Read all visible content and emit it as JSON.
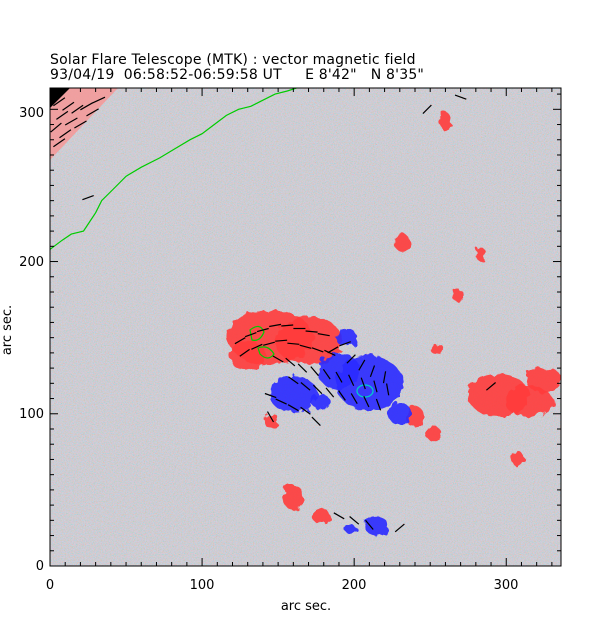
{
  "header": {
    "title": "Solar Flare Telescope (MTK) : vector magnetic field",
    "subtitle": "93/04/19  06:58:52-06:59:58 UT     E 8'42\"   N 8'35\""
  },
  "plot": {
    "xlabel": "arc sec.",
    "ylabel": "arc sec.",
    "xlim": [
      0,
      336
    ],
    "ylim": [
      0,
      314
    ],
    "x_ticks": [
      "0",
      "100",
      "200",
      "300"
    ],
    "y_ticks": [
      "0",
      "100",
      "200",
      "300"
    ],
    "colors": {
      "positive_polarity": "#ff3b3b",
      "negative_polarity": "#2a2aff",
      "contour": "#00cc00",
      "contour_inner": "#00cccc",
      "vectors": "#000000"
    },
    "positive_regions": [
      {
        "x": 145,
        "y": 150,
        "rx": 28,
        "ry": 18
      },
      {
        "x": 170,
        "y": 148,
        "rx": 22,
        "ry": 16
      },
      {
        "x": 130,
        "y": 138,
        "rx": 12,
        "ry": 10
      },
      {
        "x": 295,
        "y": 112,
        "rx": 20,
        "ry": 14
      },
      {
        "x": 315,
        "y": 108,
        "rx": 16,
        "ry": 10
      },
      {
        "x": 325,
        "y": 122,
        "rx": 12,
        "ry": 8
      },
      {
        "x": 160,
        "y": 45,
        "rx": 7,
        "ry": 8
      },
      {
        "x": 178,
        "y": 33,
        "rx": 6,
        "ry": 5
      },
      {
        "x": 252,
        "y": 87,
        "rx": 5,
        "ry": 5
      },
      {
        "x": 240,
        "y": 98,
        "rx": 6,
        "ry": 7
      },
      {
        "x": 232,
        "y": 212,
        "rx": 5,
        "ry": 6
      },
      {
        "x": 260,
        "y": 292,
        "rx": 4,
        "ry": 6
      },
      {
        "x": 268,
        "y": 178,
        "rx": 4,
        "ry": 4
      },
      {
        "x": 146,
        "y": 95,
        "rx": 5,
        "ry": 5
      },
      {
        "x": 255,
        "y": 142,
        "rx": 4,
        "ry": 4
      },
      {
        "x": 283,
        "y": 205,
        "rx": 4,
        "ry": 4
      },
      {
        "x": 308,
        "y": 70,
        "rx": 4,
        "ry": 5
      }
    ],
    "negative_regions": [
      {
        "x": 210,
        "y": 120,
        "rx": 22,
        "ry": 18
      },
      {
        "x": 190,
        "y": 128,
        "rx": 14,
        "ry": 12
      },
      {
        "x": 160,
        "y": 113,
        "rx": 16,
        "ry": 12
      },
      {
        "x": 230,
        "y": 100,
        "rx": 8,
        "ry": 7
      },
      {
        "x": 215,
        "y": 26,
        "rx": 8,
        "ry": 6
      },
      {
        "x": 198,
        "y": 24,
        "rx": 4,
        "ry": 3
      },
      {
        "x": 178,
        "y": 108,
        "rx": 6,
        "ry": 5
      },
      {
        "x": 195,
        "y": 150,
        "rx": 7,
        "ry": 6
      }
    ],
    "vectors": [
      [
        125,
        148,
        30
      ],
      [
        132,
        152,
        20
      ],
      [
        140,
        155,
        15
      ],
      [
        148,
        158,
        10
      ],
      [
        156,
        158,
        5
      ],
      [
        164,
        156,
        0
      ],
      [
        172,
        154,
        -5
      ],
      [
        180,
        152,
        -10
      ],
      [
        128,
        140,
        35
      ],
      [
        136,
        144,
        25
      ],
      [
        144,
        146,
        15
      ],
      [
        152,
        148,
        5
      ],
      [
        160,
        146,
        -5
      ],
      [
        168,
        144,
        -15
      ],
      [
        176,
        142,
        -20
      ],
      [
        184,
        140,
        -25
      ],
      [
        150,
        136,
        -30
      ],
      [
        158,
        134,
        -40
      ],
      [
        166,
        130,
        -45
      ],
      [
        174,
        128,
        -50
      ],
      [
        182,
        126,
        -55
      ],
      [
        190,
        124,
        -60
      ],
      [
        198,
        122,
        -65
      ],
      [
        206,
        120,
        -70
      ],
      [
        214,
        118,
        -75
      ],
      [
        222,
        116,
        -80
      ],
      [
        160,
        122,
        -35
      ],
      [
        168,
        118,
        -40
      ],
      [
        176,
        116,
        -45
      ],
      [
        184,
        114,
        -50
      ],
      [
        192,
        112,
        -55
      ],
      [
        200,
        110,
        -60
      ],
      [
        208,
        108,
        -65
      ],
      [
        216,
        106,
        -70
      ],
      [
        145,
        112,
        -20
      ],
      [
        152,
        108,
        -25
      ],
      [
        160,
        104,
        -30
      ],
      [
        168,
        102,
        -35
      ],
      [
        205,
        132,
        60
      ],
      [
        212,
        128,
        70
      ],
      [
        220,
        124,
        80
      ],
      [
        198,
        136,
        45
      ],
      [
        186,
        142,
        30
      ],
      [
        194,
        146,
        20
      ],
      [
        248,
        300,
        45
      ],
      [
        270,
        308,
        -20
      ],
      [
        200,
        30,
        -40
      ],
      [
        210,
        27,
        -50
      ],
      [
        190,
        33,
        -30
      ],
      [
        230,
        25,
        40
      ],
      [
        290,
        118,
        40
      ],
      [
        25,
        242,
        20
      ],
      [
        175,
        95,
        -45
      ],
      [
        145,
        98,
        -60
      ]
    ],
    "corner_vectors": [
      [
        6,
        305,
        35
      ],
      [
        12,
        302,
        35
      ],
      [
        18,
        300,
        35
      ],
      [
        24,
        302,
        30
      ],
      [
        8,
        296,
        35
      ],
      [
        14,
        292,
        30
      ],
      [
        20,
        290,
        30
      ],
      [
        4,
        288,
        40
      ],
      [
        10,
        284,
        35
      ],
      [
        28,
        298,
        30
      ],
      [
        32,
        306,
        25
      ],
      [
        6,
        278,
        35
      ]
    ],
    "limb_contour": [
      [
        0,
        208
      ],
      [
        8,
        214
      ],
      [
        14,
        218
      ],
      [
        22,
        220
      ],
      [
        26,
        226
      ],
      [
        30,
        232
      ],
      [
        34,
        240
      ],
      [
        42,
        248
      ],
      [
        50,
        256
      ],
      [
        60,
        262
      ],
      [
        72,
        268
      ],
      [
        82,
        274
      ],
      [
        92,
        280
      ],
      [
        100,
        284
      ],
      [
        108,
        290
      ],
      [
        116,
        296
      ],
      [
        124,
        300
      ],
      [
        132,
        302
      ],
      [
        140,
        306
      ],
      [
        148,
        310
      ],
      [
        156,
        312
      ],
      [
        162,
        314
      ]
    ]
  }
}
